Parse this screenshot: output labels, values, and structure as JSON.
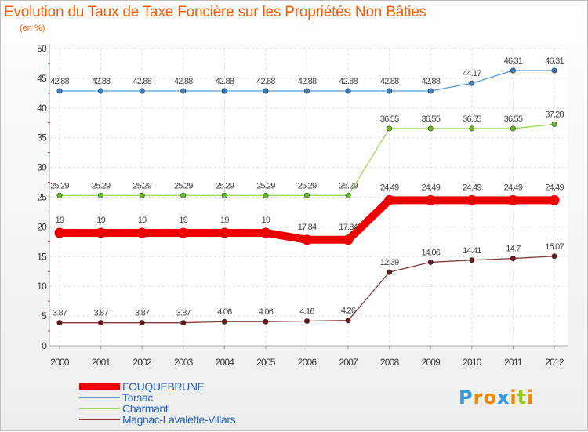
{
  "header": {
    "title": "Evolution du Taux de Taxe Foncière sur les Propriétés Non Bâties",
    "unit": "(en %)"
  },
  "chart_data": {
    "type": "line",
    "title": "Evolution du Taux de Taxe Foncière sur les Propriétés Non Bâties",
    "ylabel": "(en %)",
    "xlabel": "",
    "ylim": [
      0,
      50
    ],
    "yticks": [
      0,
      5,
      10,
      15,
      20,
      25,
      30,
      35,
      40,
      45,
      50
    ],
    "x": [
      "2000",
      "2001",
      "2002",
      "2003",
      "2004",
      "2005",
      "2006",
      "2007",
      "2008",
      "2009",
      "2010",
      "2011",
      "2012"
    ],
    "grid": true,
    "series": [
      {
        "name": "Torsac",
        "color": "#5b9bd5",
        "marker": "#3a7fc1",
        "values": [
          42.88,
          42.88,
          42.88,
          42.88,
          42.88,
          42.88,
          42.88,
          42.88,
          42.88,
          42.88,
          44.17,
          46.31,
          46.31
        ],
        "labels": [
          "42.88",
          "42.88",
          "42.88",
          "42.88",
          "42.88",
          "42.88",
          "42.88",
          "42.88",
          "42.88",
          "42.88",
          "44.17",
          "46.31",
          "46.31"
        ]
      },
      {
        "name": "Charmant",
        "color": "#99dd55",
        "marker": "#66bb22",
        "values": [
          25.29,
          25.29,
          25.29,
          25.29,
          25.29,
          25.29,
          25.29,
          25.29,
          36.55,
          36.55,
          36.55,
          36.55,
          37.28
        ],
        "labels": [
          "25.29",
          "25.29",
          "25.29",
          "25.29",
          "25.29",
          "25.29",
          "25.29",
          "25.29",
          "36.55",
          "36.55",
          "36.55",
          "36.55",
          "37.28"
        ]
      },
      {
        "name": "FOUQUEBRUNE",
        "color": "#ee0000",
        "marker": "#ee0000",
        "thick": true,
        "values": [
          19,
          19,
          19,
          19,
          19,
          19,
          17.84,
          17.84,
          24.49,
          24.49,
          24.49,
          24.49,
          24.49
        ],
        "labels": [
          "19",
          "19",
          "19",
          "19",
          "19",
          "19",
          "17.84",
          "17.84",
          "24.49",
          "24.49",
          "24.49",
          "24.49",
          "24.49"
        ]
      },
      {
        "name": "Magnac-Lavalette-Villars",
        "color": "#8b3a3a",
        "marker": "#6b1a1a",
        "values": [
          3.87,
          3.87,
          3.87,
          3.87,
          4.06,
          4.06,
          4.16,
          4.26,
          12.39,
          14.06,
          14.41,
          14.7,
          15.07
        ],
        "labels": [
          "3.87",
          "3.87",
          "3.87",
          "3.87",
          "4.06",
          "4.06",
          "4.16",
          "4.26",
          "12.39",
          "14.06",
          "14.41",
          "14.7",
          "15.07"
        ]
      }
    ],
    "legend": [
      {
        "name": "FOUQUEBRUNE",
        "color": "#ee0000"
      },
      {
        "name": "Torsac",
        "color": "#5b9bd5"
      },
      {
        "name": "Charmant",
        "color": "#99dd55"
      },
      {
        "name": "Magnac-Lavalette-Villars",
        "color": "#8b3a3a"
      }
    ],
    "legend_position": "bottom-left"
  },
  "logo": {
    "letters": [
      "P",
      "r",
      "o",
      "x",
      "i",
      "t",
      "i"
    ],
    "colors": [
      "#3399dd",
      "#ee8800",
      "#ee8800",
      "#3399dd",
      "#ee8800",
      "#99cc00",
      "#ee8800"
    ]
  }
}
